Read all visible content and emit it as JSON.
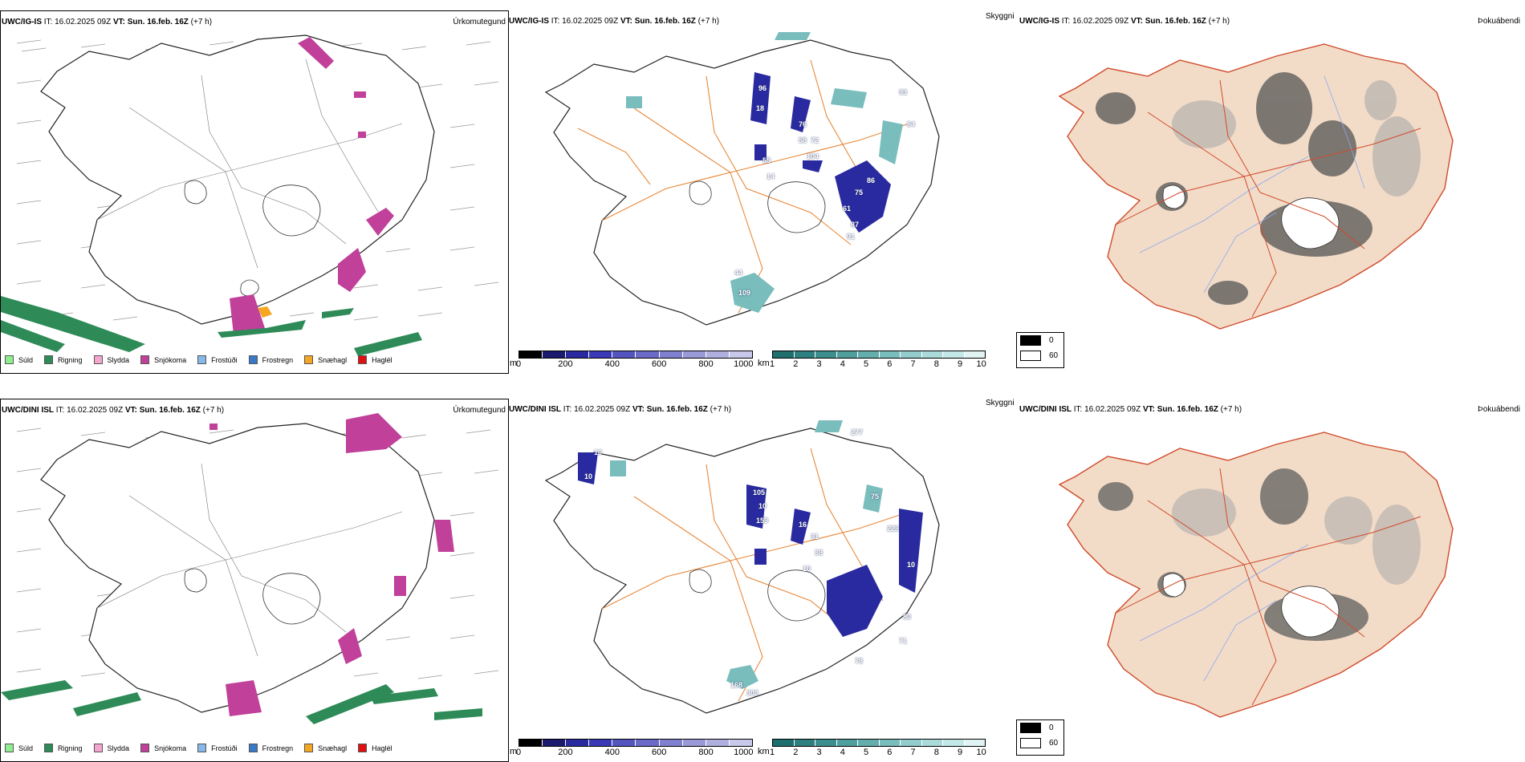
{
  "rows": [
    {
      "model": "UWC/IG-IS",
      "it_label": "IT:",
      "it_value": "16.02.2025 09Z",
      "vt_label": "VT:",
      "vt_value": "Sun. 16.feb. 16Z",
      "lead": "(+7 h)",
      "type_left": "Úrkomutegund",
      "type_mid": "Skyggni",
      "type_right": "Þokuábendi",
      "visibility_labels": [
        "96",
        "18",
        "76",
        "58",
        "72",
        "104",
        "55",
        "14",
        "86",
        "75",
        "61",
        "87",
        "91",
        "84",
        "93",
        "109",
        "44"
      ]
    },
    {
      "model": "UWC/DINI ISL",
      "it_label": "IT:",
      "it_value": "16.02.2025 09Z",
      "vt_label": "VT:",
      "vt_value": "Sun. 16.feb. 16Z",
      "lead": "(+7 h)",
      "type_left": "Úrkomutegund",
      "type_mid": "Skyggni",
      "type_right": "Þokuábendi",
      "visibility_labels": [
        "10",
        "10",
        "105",
        "10",
        "159",
        "16",
        "31",
        "38",
        "10",
        "277",
        "75",
        "228",
        "80",
        "71",
        "78",
        "10",
        "168",
        "302"
      ]
    }
  ],
  "precip_legend": [
    {
      "label": "Súld",
      "color": "#90ee90"
    },
    {
      "label": "Rigning",
      "color": "#2e8b57"
    },
    {
      "label": "Slydda",
      "color": "#f4a6d0"
    },
    {
      "label": "Snjókoma",
      "color": "#c0409a"
    },
    {
      "label": "Frostúði",
      "color": "#87b8ea"
    },
    {
      "label": "Frostregn",
      "color": "#3a78c8"
    },
    {
      "label": "Snæhagl",
      "color": "#f5a623"
    },
    {
      "label": "Haglél",
      "color": "#e01010"
    }
  ],
  "colorbar_m": {
    "unit": "m",
    "ticks": [
      "0",
      "200",
      "400",
      "600",
      "800",
      "1000"
    ],
    "colors": [
      "#000000",
      "#1a1a6e",
      "#2a2aa0",
      "#3a3ab8",
      "#5555c0",
      "#6a6ac8",
      "#8080d0",
      "#9a9ad8",
      "#b0b0e0",
      "#c8c8ea"
    ]
  },
  "colorbar_km": {
    "unit": "km",
    "ticks": [
      "1",
      "2",
      "3",
      "4",
      "5",
      "6",
      "7",
      "8",
      "9",
      "10"
    ],
    "colors": [
      "#1f6f6f",
      "#2e7f7f",
      "#3d8f8f",
      "#4f9f9f",
      "#64aeae",
      "#7abdbd",
      "#92cccc",
      "#aadada",
      "#c4e8e8",
      "#e0f4f4"
    ]
  },
  "shade_legend": [
    "0",
    "60"
  ]
}
